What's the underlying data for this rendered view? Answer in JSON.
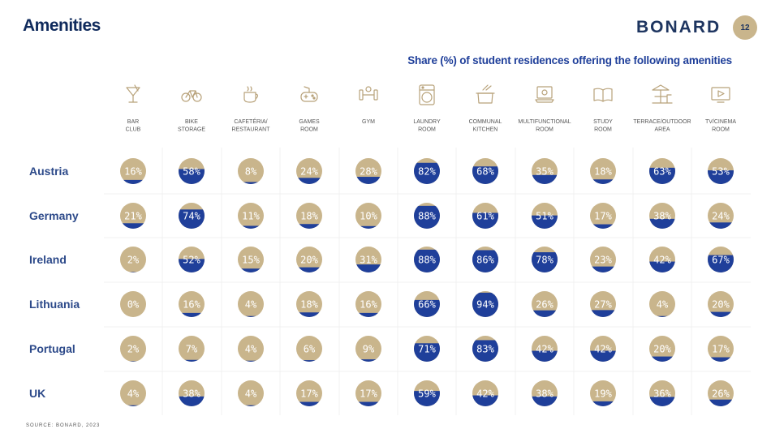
{
  "header": {
    "title": "Amenities",
    "brand": "BONARD",
    "page_number": "12",
    "footer": "SOURCE: BONARD, 2023"
  },
  "colors": {
    "navy": "#1f3f9a",
    "gold": "#c9b58c",
    "icon": "#b8a27a",
    "label": "#2d4a8a"
  },
  "chart_data": {
    "type": "table",
    "title": "Share (%) of student residences offering the following amenities",
    "columns": [
      {
        "label": [
          "BAR",
          "CLUB"
        ],
        "icon": "cocktail-icon"
      },
      {
        "label": [
          "BIKE",
          "STORAGE"
        ],
        "icon": "bicycle-icon"
      },
      {
        "label": [
          "CAFETÉRIA/",
          "RESTAURANT"
        ],
        "icon": "coffee-cup-icon"
      },
      {
        "label": [
          "GAMES",
          "ROOM"
        ],
        "icon": "gamepad-icon"
      },
      {
        "label": [
          "GYM"
        ],
        "icon": "dumbbell-icon"
      },
      {
        "label": [
          "LAUNDRY",
          "ROOM"
        ],
        "icon": "washing-machine-icon"
      },
      {
        "label": [
          "COMMUNAL",
          "KITCHEN"
        ],
        "icon": "cooking-pot-icon"
      },
      {
        "label": [
          "MULTIFUNCTIONAL",
          "ROOM"
        ],
        "icon": "laptop-icon"
      },
      {
        "label": [
          "STUDY",
          "ROOM"
        ],
        "icon": "open-book-icon"
      },
      {
        "label": [
          "TERRACE/OUTDOOR",
          "AREA"
        ],
        "icon": "terrace-table-icon"
      },
      {
        "label": [
          "TV/CINEMA",
          "ROOM"
        ],
        "icon": "play-screen-icon"
      }
    ],
    "rows": [
      {
        "country": "Austria",
        "values": [
          16,
          58,
          8,
          24,
          28,
          82,
          68,
          35,
          18,
          63,
          53
        ]
      },
      {
        "country": "Germany",
        "values": [
          21,
          74,
          11,
          18,
          10,
          88,
          61,
          51,
          17,
          38,
          24
        ]
      },
      {
        "country": "Ireland",
        "values": [
          2,
          52,
          15,
          20,
          31,
          88,
          86,
          78,
          23,
          42,
          67
        ]
      },
      {
        "country": "Lithuania",
        "values": [
          0,
          16,
          4,
          18,
          16,
          66,
          94,
          26,
          27,
          4,
          20
        ]
      },
      {
        "country": "Portugal",
        "values": [
          2,
          7,
          4,
          6,
          9,
          71,
          83,
          42,
          42,
          20,
          17
        ]
      },
      {
        "country": "UK",
        "values": [
          4,
          38,
          4,
          17,
          17,
          59,
          42,
          38,
          19,
          36,
          26
        ]
      }
    ],
    "unit": "%"
  }
}
